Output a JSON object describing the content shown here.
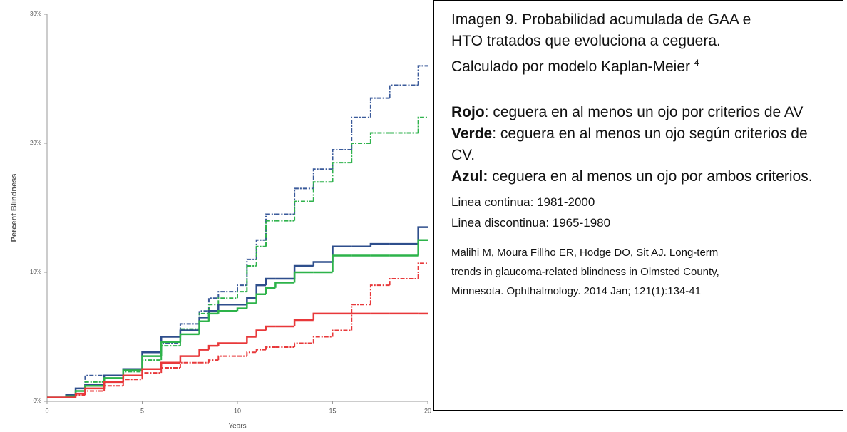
{
  "chart_data": {
    "type": "step",
    "ylabel": "Percent Blindness",
    "xlabel": "Years",
    "xlim": [
      0,
      20
    ],
    "xticks": [
      0,
      5,
      10,
      15,
      20
    ],
    "ylim": [
      0,
      30
    ],
    "yticks": [
      {
        "value": 0,
        "label": "0%"
      },
      {
        "value": 10,
        "label": "10%"
      },
      {
        "value": 20,
        "label": "20%"
      },
      {
        "value": 30,
        "label": "30%"
      }
    ],
    "x": [
      0,
      1,
      1.5,
      2,
      3,
      4,
      5,
      6,
      7,
      8,
      8.5,
      9,
      10,
      10.5,
      11,
      11.5,
      12,
      13,
      14,
      15,
      16,
      17,
      18,
      19.5,
      20
    ],
    "series": [
      {
        "color": "#3a5a9a",
        "dashed": true,
        "values": [
          0.3,
          0.5,
          1,
          2,
          2,
          2.5,
          3.5,
          4.5,
          6,
          7,
          8,
          8.5,
          9,
          11,
          12.5,
          14.5,
          14.5,
          16.5,
          18,
          19.5,
          22,
          23.5,
          24.5,
          26,
          26
        ]
      },
      {
        "color": "#2fb24c",
        "dashed": true,
        "values": [
          0.3,
          0.4,
          0.8,
          1.5,
          2,
          2.3,
          3.2,
          4.3,
          5.6,
          6.8,
          7.5,
          8,
          8.5,
          10.5,
          12,
          14,
          14,
          15.5,
          17,
          18.5,
          20,
          20.8,
          20.8,
          22,
          22
        ]
      },
      {
        "color": "#2e4e8c",
        "dashed": false,
        "values": [
          0.3,
          0.5,
          1,
          1.3,
          2,
          2.5,
          3.8,
          5,
          5.5,
          6.5,
          7,
          7.5,
          7.5,
          8,
          9,
          9.5,
          9.5,
          10.5,
          10.8,
          12,
          12,
          12.2,
          12.2,
          13.5,
          13.5
        ]
      },
      {
        "color": "#2db34a",
        "dashed": false,
        "values": [
          0.3,
          0.4,
          0.8,
          1.2,
          1.8,
          2.4,
          3.5,
          4.6,
          5.2,
          6.2,
          6.8,
          7,
          7.2,
          7.6,
          8.3,
          8.8,
          9.2,
          10,
          10,
          11.3,
          11.3,
          11.3,
          11.3,
          12.5,
          12.5
        ]
      },
      {
        "color": "#e8383a",
        "dashed": false,
        "values": [
          0.3,
          0.3,
          0.6,
          1,
          1.5,
          2,
          2.5,
          3,
          3.5,
          4,
          4.3,
          4.5,
          4.5,
          5,
          5.5,
          5.8,
          5.8,
          6.3,
          6.8,
          6.8,
          6.8,
          6.8,
          6.8,
          6.8,
          6.8
        ]
      },
      {
        "color": "#e8383a",
        "dashed": true,
        "values": [
          0.3,
          0.3,
          0.5,
          0.8,
          1.2,
          1.7,
          2.2,
          2.6,
          3,
          3,
          3.2,
          3.5,
          3.5,
          3.8,
          4,
          4.2,
          4.2,
          4.5,
          5,
          5.5,
          7.5,
          9,
          9.5,
          10.7,
          10.7
        ]
      }
    ]
  },
  "text_box": {
    "title_lines": [
      "Imagen 9. Probabilidad acumulada de GAA e",
      "HTO tratados que evoluciona a ceguera.",
      "Calculado por modelo Kaplan-Meier"
    ],
    "title_sup": "4",
    "legend": [
      {
        "label": "Rojo",
        "text": ": ceguera en al menos un ojo por criterios de AV"
      },
      {
        "label": "Verde",
        "text": ": ceguera en al menos un ojo según criterios de CV."
      },
      {
        "label": "Azul:",
        "text": " ceguera en al menos un ojo por ambos criterios."
      }
    ],
    "periods": [
      "Linea continua: 1981-2000",
      "Linea discontinua: 1965-1980"
    ],
    "reference_lines": [
      "Malihi M, Moura Fillho ER, Hodge DO, Sit AJ. Long-term",
      "trends in glaucoma-related blindness in Olmsted County,",
      "Minnesota. Ophthalmology. 2014 Jan; 121(1):134-41"
    ]
  }
}
